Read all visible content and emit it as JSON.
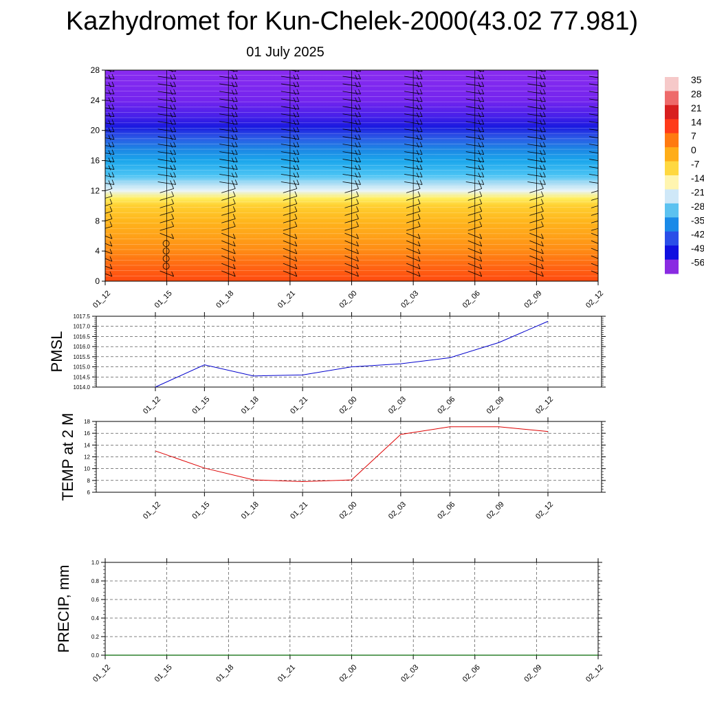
{
  "title": "Kazhydromet for Kun-Chelek-2000(43.02 77.981)",
  "subtitle": "01 July 2025",
  "chart_data": [
    {
      "type": "heatmap",
      "title": "",
      "xlabel": "",
      "ylabel": "",
      "x_ticks": [
        "01_12",
        "01_15",
        "01_18",
        "01_21",
        "02_00",
        "02_03",
        "02_06",
        "02_09",
        "02_12"
      ],
      "y_ticks": [
        0,
        4,
        8,
        12,
        16,
        20,
        24,
        28
      ],
      "ylim": [
        0,
        28
      ],
      "description_values": "temperature by height level (km), colored",
      "colorbar_labels": [
        "35",
        "28",
        "21",
        "14",
        "7",
        "0",
        "-7",
        "-14",
        "-21",
        "-28",
        "-35",
        "-42",
        "-49",
        "-56"
      ],
      "colorbar_colors": [
        "#f6c9c9",
        "#ee6a6a",
        "#d81f1f",
        "#ff3b1a",
        "#ff7a10",
        "#ffad18",
        "#ffd840",
        "#fff5b0",
        "#cfe8f8",
        "#5cc2f0",
        "#1a8ae8",
        "#2a4ee8",
        "#1010e0",
        "#8a2be2"
      ],
      "rows": [
        {
          "level": 0,
          "color": "#ff4a10"
        },
        {
          "level": 2,
          "color": "#ff6612"
        },
        {
          "level": 4,
          "color": "#ff8a14"
        },
        {
          "level": 6,
          "color": "#ffa218"
        },
        {
          "level": 8,
          "color": "#ffb61c"
        },
        {
          "level": 10,
          "color": "#ffcf30"
        },
        {
          "level": 11,
          "color": "#ffef60"
        },
        {
          "level": 12,
          "color": "#e8f4f8"
        },
        {
          "level": 13,
          "color": "#a8dcf4"
        },
        {
          "level": 14,
          "color": "#4cc4f4"
        },
        {
          "level": 16,
          "color": "#1ba6ec"
        },
        {
          "level": 17.5,
          "color": "#1c86e4"
        },
        {
          "level": 19,
          "color": "#2b5ae6"
        },
        {
          "level": 20.5,
          "color": "#1a1ae0"
        },
        {
          "level": 22,
          "color": "#4a20ea"
        },
        {
          "level": 24,
          "color": "#7424ee"
        },
        {
          "level": 28,
          "color": "#8a2cf0"
        }
      ],
      "wind_barb_levels": [
        1,
        2,
        3,
        4,
        5,
        6,
        7,
        8,
        9,
        10,
        11,
        12,
        13,
        14,
        15,
        16,
        17,
        18,
        19,
        20,
        21,
        22,
        23,
        24,
        25,
        26,
        27,
        28
      ],
      "calm_markers": {
        "time": "01_15",
        "levels": [
          2,
          3,
          4,
          5
        ]
      }
    },
    {
      "type": "line",
      "ylabel": "PMSL",
      "ylim": [
        1014.0,
        1017.5
      ],
      "y_ticks": [
        "1014.0",
        "1014.5",
        "1015.0",
        "1015.5",
        "1016.0",
        "1016.5",
        "1017.0",
        "1017.5"
      ],
      "categories": [
        "01_12",
        "01_15",
        "01_18",
        "01_21",
        "02_00",
        "02_03",
        "02_06",
        "02_09",
        "02_12"
      ],
      "series": [
        {
          "values": [
            1014.0,
            1015.1,
            1014.55,
            1014.6,
            1015.0,
            1015.15,
            1015.45,
            1016.2,
            1017.25
          ],
          "color": "#0000cc"
        }
      ]
    },
    {
      "type": "line",
      "ylabel": "TEMP at 2 M",
      "ylim": [
        6,
        18
      ],
      "y_ticks": [
        "6",
        "8",
        "10",
        "12",
        "14",
        "16",
        "18"
      ],
      "categories": [
        "01_12",
        "01_15",
        "01_18",
        "01_21",
        "02_00",
        "02_03",
        "02_06",
        "02_09",
        "02_12"
      ],
      "series": [
        {
          "values": [
            13.0,
            10.1,
            8.1,
            7.8,
            8.1,
            15.8,
            17.1,
            17.1,
            16.3
          ],
          "color": "#dd0000"
        }
      ]
    },
    {
      "type": "line",
      "ylabel": "PRECIP, mm",
      "ylim": [
        0.0,
        1.0
      ],
      "y_ticks": [
        "0.0",
        "0.2",
        "0.4",
        "0.6",
        "0.8",
        "1.0"
      ],
      "x_ticks": [
        "01_12",
        "01_15",
        "01_18",
        "01_21",
        "02_00",
        "02_03",
        "02_06",
        "02_09",
        "02_12"
      ],
      "series": [
        {
          "values": [
            0,
            0,
            0,
            0,
            0,
            0,
            0,
            0,
            0
          ],
          "color": "#006600"
        }
      ]
    }
  ]
}
